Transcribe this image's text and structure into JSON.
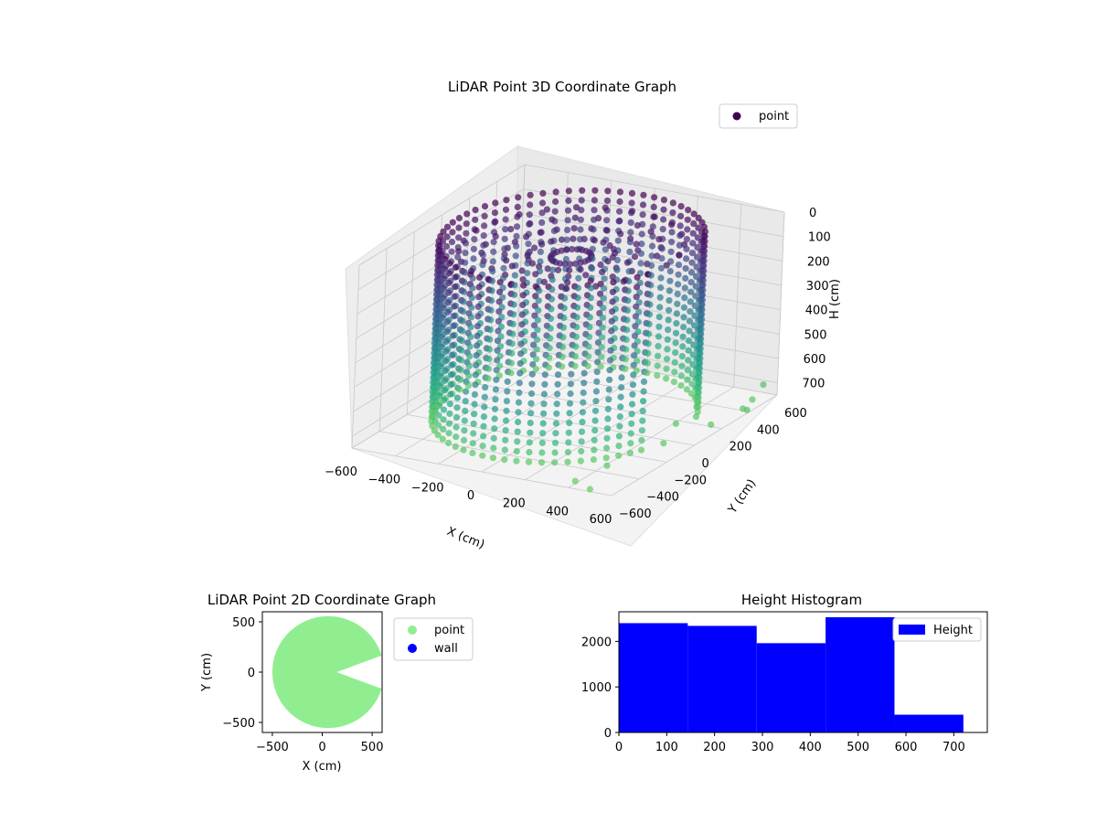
{
  "chart_data": [
    {
      "type": "scatter",
      "projection": "3d",
      "title": "LiDAR Point 3D Coordinate Graph",
      "xlabel": "X (cm)",
      "ylabel": "Y (cm)",
      "zlabel": "H (cm)",
      "xlim": [
        -600,
        600
      ],
      "ylim": [
        -600,
        600
      ],
      "zlim": [
        0,
        750
      ],
      "z_inverted": true,
      "x_ticks": [
        "−600",
        "−400",
        "−200",
        "0",
        "200",
        "400",
        "600"
      ],
      "y_ticks": [
        "−600",
        "−400",
        "−200",
        "0",
        "200",
        "400",
        "600"
      ],
      "z_ticks": [
        "0",
        "100",
        "200",
        "300",
        "400",
        "500",
        "600",
        "700"
      ],
      "colormap": "viridis",
      "grid": true,
      "legend": {
        "position": "top-right",
        "entries": [
          "point"
        ]
      },
      "description_of_data": "Cylindrical shell of points, radius ~520 cm, heights 0-720 cm, with a notch cut out toward +X; a few scattered outlier points beyond the shell on the +X side.",
      "shell_radius": 520,
      "height_range": [
        0,
        720
      ],
      "outliers": [
        {
          "x": 560,
          "y": 560,
          "h": 700
        },
        {
          "x": 580,
          "y": 450,
          "h": 720
        },
        {
          "x": 600,
          "y": 350,
          "h": 720
        },
        {
          "x": 450,
          "y": -400,
          "h": 720
        },
        {
          "x": 400,
          "y": -550,
          "h": 740
        },
        {
          "x": 500,
          "y": -600,
          "h": 740
        },
        {
          "x": 650,
          "y": 300,
          "h": 700
        },
        {
          "x": 580,
          "y": 150,
          "h": 720
        },
        {
          "x": 450,
          "y": 100,
          "h": 720
        },
        {
          "x": 520,
          "y": -100,
          "h": 720
        }
      ]
    },
    {
      "type": "scatter",
      "title": "LiDAR Point 2D Coordinate Graph",
      "xlabel": "X (cm)",
      "ylabel": "Y (cm)",
      "xlim": [
        -600,
        600
      ],
      "ylim": [
        -600,
        600
      ],
      "x_ticks": [
        "−500",
        "0",
        "500"
      ],
      "y_ticks": [
        "−500",
        "0",
        "500"
      ],
      "series": [
        {
          "name": "point",
          "color": "#90ee90",
          "shape": "disc radius ~550 cm with notch toward +X"
        },
        {
          "name": "wall",
          "color": "#0000ff",
          "points": []
        }
      ],
      "legend": {
        "position": "outside-right",
        "entries": [
          "point",
          "wall"
        ]
      }
    },
    {
      "type": "bar",
      "subtype": "histogram",
      "title": "Height Histogram",
      "xlim": [
        0,
        770
      ],
      "ylim": [
        0,
        2650
      ],
      "x_ticks": [
        "0",
        "100",
        "200",
        "300",
        "400",
        "500",
        "600",
        "700"
      ],
      "y_ticks": [
        "0",
        "1000",
        "2000"
      ],
      "bins": [
        {
          "from": 0,
          "to": 144,
          "count": 2400
        },
        {
          "from": 144,
          "to": 288,
          "count": 2340
        },
        {
          "from": 288,
          "to": 432,
          "count": 1960
        },
        {
          "from": 432,
          "to": 576,
          "count": 2530
        },
        {
          "from": 576,
          "to": 720,
          "count": 390
        }
      ],
      "color": "#0000ff",
      "legend": {
        "position": "top-right",
        "entries": [
          "Height"
        ]
      }
    }
  ]
}
